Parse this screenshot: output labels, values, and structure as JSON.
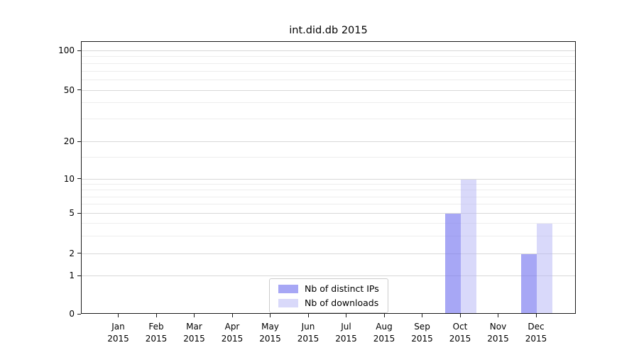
{
  "figure": {
    "background": "#ffffff"
  },
  "chart_data": {
    "type": "bar",
    "title": "int.did.db 2015",
    "xlabel": "",
    "ylabel": "",
    "yscale": "symlog",
    "ylim": [
      0,
      118
    ],
    "yticks": [
      0,
      1,
      2,
      5,
      10,
      20,
      50,
      100
    ],
    "minor_yticks": [
      3,
      4,
      6,
      7,
      8,
      9,
      15,
      30,
      40,
      60,
      70,
      80,
      90
    ],
    "grid": "horizontal major+minor",
    "categories": [
      "Jan 2015",
      "Feb 2015",
      "Mar 2015",
      "Apr 2015",
      "May 2015",
      "Jun 2015",
      "Jul 2015",
      "Aug 2015",
      "Sep 2015",
      "Oct 2015",
      "Nov 2015",
      "Dec 2015"
    ],
    "series": [
      {
        "name": "Nb of distinct IPs",
        "color": "#a8a8f4",
        "color_rgba": "rgba(120,120,240,0.65)",
        "values": [
          0,
          0,
          0,
          0,
          0,
          0,
          0,
          0,
          0,
          5,
          0,
          2
        ]
      },
      {
        "name": "Nb of downloads",
        "color": "#dcdcfa",
        "color_rgba": "rgba(180,180,245,0.5)",
        "values": [
          0,
          0,
          0,
          0,
          0,
          0,
          0,
          0,
          0,
          10,
          0,
          4
        ]
      }
    ],
    "legend_position": "lower center inside plot"
  },
  "colors": {
    "grid_major": "#d8d8d8",
    "grid_minor": "#ededed",
    "spine": "#1a1a1a",
    "legend_border": "#cccccc",
    "text": "#000000"
  }
}
